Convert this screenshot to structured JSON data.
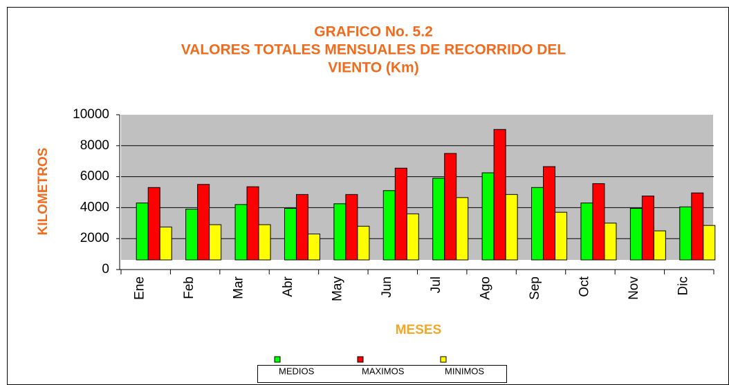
{
  "chart_data": {
    "type": "bar",
    "title": [
      "GRAFICO No. 5.2",
      "VALORES TOTALES MENSUALES DE RECORRIDO DEL",
      "VIENTO (Km)"
    ],
    "y_label": "KILOMETROS",
    "x_label": "MESES",
    "categories": [
      "Ene",
      "Feb",
      "Mar",
      "Abr",
      "May",
      "Jun",
      "Jul",
      "Ago",
      "Sep",
      "Oct",
      "Nov",
      "Dic"
    ],
    "series": [
      {
        "name": "MEDIOS",
        "color": "#00ff00",
        "values": [
          4300,
          3900,
          4200,
          3950,
          4250,
          5100,
          5900,
          6250,
          5300,
          4300,
          3950,
          4050
        ]
      },
      {
        "name": "MAXIMOS",
        "color": "#ff0000",
        "values": [
          5300,
          5500,
          5350,
          4850,
          4850,
          6550,
          7500,
          9050,
          6650,
          5550,
          4750,
          4950
        ]
      },
      {
        "name": "MINIMOS",
        "color": "#ffff00",
        "values": [
          2750,
          2900,
          2900,
          2300,
          2800,
          3600,
          4650,
          4850,
          3700,
          3000,
          2500,
          2850
        ]
      }
    ],
    "ylim": [
      0,
      10000
    ],
    "yticks": [
      0,
      2000,
      4000,
      6000,
      8000,
      10000
    ],
    "grid": true,
    "legend": "bottom"
  }
}
